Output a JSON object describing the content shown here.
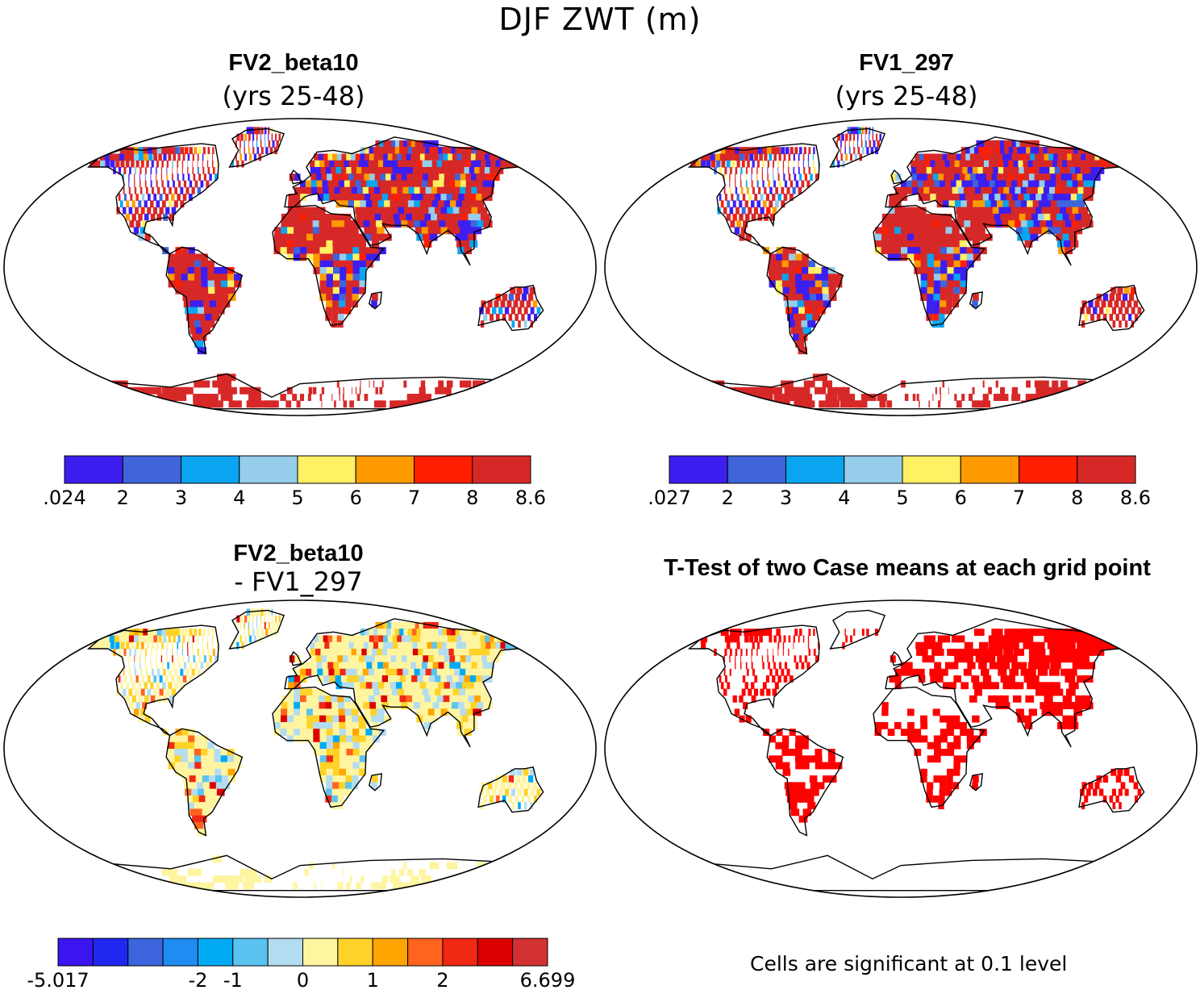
{
  "figure": {
    "title": "DJF ZWT (m)"
  },
  "panels": [
    {
      "title": "FV2_beta10",
      "subtitle": "(yrs 25-48)",
      "colorbar": {
        "ticks": [
          ".024",
          "2",
          "3",
          "4",
          "5",
          "6",
          "7",
          "8",
          "8.6"
        ],
        "colors": [
          "#3c1ef0",
          "#3f64dc",
          "#0aa5f0",
          "#96cdeb",
          "#fff064",
          "#ff9b00",
          "#ff1e00",
          "#d72828"
        ]
      }
    },
    {
      "title": "FV1_297",
      "subtitle": "(yrs 25-48)",
      "colorbar": {
        "ticks": [
          ".027",
          "2",
          "3",
          "4",
          "5",
          "6",
          "7",
          "8",
          "8.6"
        ],
        "colors": [
          "#3c1ef0",
          "#3f64dc",
          "#0aa5f0",
          "#96cdeb",
          "#fff064",
          "#ff9b00",
          "#ff1e00",
          "#d72828"
        ]
      }
    },
    {
      "title": "FV2_beta10",
      "subtitle": "- FV1_297",
      "colorbar": {
        "ticks": [
          "-5.017",
          "-2",
          "-1",
          "0",
          "1",
          "2",
          "6.699"
        ],
        "colors": [
          "#3c14f0",
          "#1e28f0",
          "#3c64dc",
          "#1e8cf0",
          "#00aaf5",
          "#5ac3f0",
          "#b4dcf0",
          "#fff5a0",
          "#ffd228",
          "#ffa500",
          "#ff641e",
          "#f02814",
          "#dc0000",
          "#d23232"
        ]
      }
    },
    {
      "title": "T-Test of two Case means at each grid point",
      "note": "Cells are significant at 0.1 level",
      "cell_color": "#ff0000"
    }
  ]
}
